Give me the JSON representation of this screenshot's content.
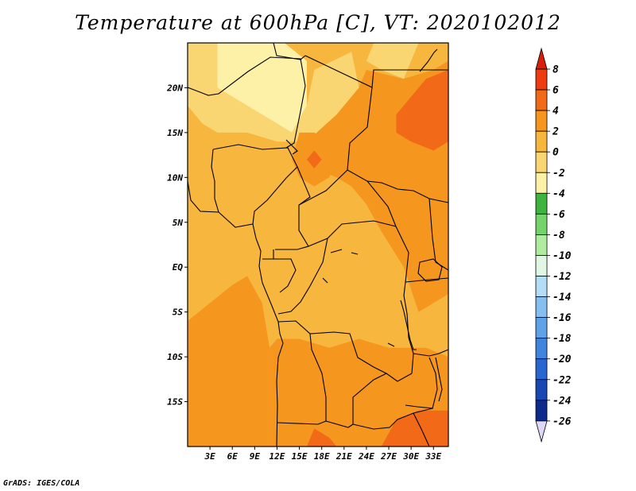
{
  "title": "Temperature at 600hPa [C], VT: 2020102012",
  "credit": "GrADS: IGES/COLA",
  "map": {
    "lon_range": [
      0,
      35
    ],
    "lat_range": [
      -20,
      25
    ],
    "lat_ticks": [
      {
        "value": 20,
        "label": "20N"
      },
      {
        "value": 15,
        "label": "15N"
      },
      {
        "value": 10,
        "label": "10N"
      },
      {
        "value": 5,
        "label": "5N"
      },
      {
        "value": 0,
        "label": "EQ"
      },
      {
        "value": -5,
        "label": "5S"
      },
      {
        "value": -10,
        "label": "10S"
      },
      {
        "value": -15,
        "label": "15S"
      }
    ],
    "lon_ticks": [
      {
        "value": 3,
        "label": "3E"
      },
      {
        "value": 6,
        "label": "6E"
      },
      {
        "value": 9,
        "label": "9E"
      },
      {
        "value": 12,
        "label": "12E"
      },
      {
        "value": 15,
        "label": "15E"
      },
      {
        "value": 18,
        "label": "18E"
      },
      {
        "value": 21,
        "label": "21E"
      },
      {
        "value": 24,
        "label": "24E"
      },
      {
        "value": 27,
        "label": "27E"
      },
      {
        "value": 30,
        "label": "30E"
      },
      {
        "value": 33,
        "label": "33E"
      }
    ]
  },
  "colorbar": {
    "bins": [
      {
        "lo": 6,
        "hi": 8,
        "color": "#ee3b10"
      },
      {
        "lo": 4,
        "hi": 6,
        "color": "#f26a18"
      },
      {
        "lo": 2,
        "hi": 4,
        "color": "#f5961f"
      },
      {
        "lo": 0,
        "hi": 2,
        "color": "#f7b63e"
      },
      {
        "lo": -2,
        "hi": 0,
        "color": "#fad672"
      },
      {
        "lo": -4,
        "hi": -2,
        "color": "#fdf1a8"
      },
      {
        "lo": -6,
        "hi": -4,
        "color": "#3db43d"
      },
      {
        "lo": -8,
        "hi": -6,
        "color": "#74d36b"
      },
      {
        "lo": -10,
        "hi": -8,
        "color": "#b0ec9f"
      },
      {
        "lo": -12,
        "hi": -10,
        "color": "#e0f7e3"
      },
      {
        "lo": -14,
        "hi": -12,
        "color": "#b3dcf6"
      },
      {
        "lo": -16,
        "hi": -14,
        "color": "#84bfef"
      },
      {
        "lo": -18,
        "hi": -16,
        "color": "#5ea3e8"
      },
      {
        "lo": -20,
        "hi": -18,
        "color": "#3f85de"
      },
      {
        "lo": -22,
        "hi": -20,
        "color": "#2867d0"
      },
      {
        "lo": -24,
        "hi": -22,
        "color": "#1a48b2"
      },
      {
        "lo": -26,
        "hi": -24,
        "color": "#0d2b8c"
      }
    ],
    "over_color": "#d81f0c",
    "under_color": "#dcd8f5",
    "labels": [
      "8",
      "6",
      "4",
      "2",
      "0",
      "-2",
      "-4",
      "-6",
      "-8",
      "-10",
      "-12",
      "-14",
      "-16",
      "-18",
      "-20",
      "-22",
      "-24",
      "-26"
    ]
  },
  "field": {
    "base_color": "#f7b63e",
    "regions": [
      {
        "name": "warm-region-sahara-north",
        "color": "#fdf1a8",
        "points": [
          [
            4,
            25
          ],
          [
            13,
            25
          ],
          [
            16,
            23
          ],
          [
            16,
            18
          ],
          [
            14,
            15
          ],
          [
            10,
            17
          ],
          [
            6,
            19
          ],
          [
            4,
            20
          ]
        ]
      },
      {
        "name": "mild-region-sahel",
        "color": "#fad672",
        "points": [
          [
            0,
            25
          ],
          [
            4,
            25
          ],
          [
            4,
            20
          ],
          [
            6,
            19
          ],
          [
            10,
            17
          ],
          [
            14,
            15
          ],
          [
            16,
            18
          ],
          [
            17,
            22
          ],
          [
            22,
            24
          ],
          [
            23,
            20
          ],
          [
            20,
            17
          ],
          [
            16,
            14
          ],
          [
            12,
            14
          ],
          [
            8,
            15
          ],
          [
            4,
            15
          ],
          [
            2,
            16
          ],
          [
            0,
            18
          ]
        ]
      },
      {
        "name": "mild-region-northeast",
        "color": "#fad672",
        "points": [
          [
            25,
            25
          ],
          [
            31,
            25
          ],
          [
            29,
            21
          ],
          [
            26,
            22
          ],
          [
            24,
            23
          ]
        ]
      },
      {
        "name": "hot-region-east",
        "color": "#f5961f",
        "points": [
          [
            24,
            22
          ],
          [
            29,
            21
          ],
          [
            33,
            22
          ],
          [
            35,
            23
          ],
          [
            35,
            -3
          ],
          [
            31,
            -5
          ],
          [
            29,
            0
          ],
          [
            26,
            4
          ],
          [
            24,
            7
          ],
          [
            22,
            9
          ],
          [
            20,
            10
          ],
          [
            17,
            11
          ],
          [
            16,
            14
          ],
          [
            20,
            17
          ],
          [
            23,
            20
          ]
        ]
      },
      {
        "name": "hot-region-central-north",
        "color": "#f5961f",
        "points": [
          [
            15,
            15
          ],
          [
            17,
            15
          ],
          [
            19,
            14
          ],
          [
            20,
            12
          ],
          [
            19,
            10
          ],
          [
            17,
            9
          ],
          [
            15,
            10
          ],
          [
            14,
            12
          ]
        ]
      },
      {
        "name": "hottest-region-northeast",
        "color": "#f26a18",
        "points": [
          [
            30,
            19
          ],
          [
            32,
            21
          ],
          [
            35,
            22
          ],
          [
            35,
            14
          ],
          [
            33,
            13
          ],
          [
            30,
            14
          ],
          [
            28,
            15
          ],
          [
            28,
            17
          ]
        ]
      },
      {
        "name": "hottest-spot-chad",
        "color": "#f26a18",
        "points": [
          [
            16,
            12
          ],
          [
            17,
            13
          ],
          [
            18,
            12
          ],
          [
            17,
            11
          ]
        ]
      },
      {
        "name": "hot-region-atlantic-west",
        "color": "#f5961f",
        "points": [
          [
            0,
            -20
          ],
          [
            11,
            -20
          ],
          [
            11,
            -9
          ],
          [
            10,
            -4
          ],
          [
            8,
            -1
          ],
          [
            6,
            -2
          ],
          [
            3,
            -4
          ],
          [
            0,
            -6
          ]
        ]
      },
      {
        "name": "hot-region-angola-zambia",
        "color": "#f5961f",
        "points": [
          [
            11,
            -20
          ],
          [
            35,
            -20
          ],
          [
            35,
            -10
          ],
          [
            32,
            -9
          ],
          [
            27,
            -9
          ],
          [
            23,
            -8
          ],
          [
            19,
            -9
          ],
          [
            15,
            -8
          ],
          [
            12,
            -8
          ],
          [
            11,
            -9
          ]
        ]
      },
      {
        "name": "hottest-region-south",
        "color": "#f26a18",
        "points": [
          [
            26,
            -20
          ],
          [
            35,
            -20
          ],
          [
            35,
            -16
          ],
          [
            31,
            -16
          ],
          [
            28,
            -17
          ]
        ]
      },
      {
        "name": "hottest-spot-southwest",
        "color": "#f26a18",
        "points": [
          [
            16,
            -20
          ],
          [
            20,
            -20
          ],
          [
            19,
            -19
          ],
          [
            17,
            -18
          ]
        ]
      }
    ]
  }
}
